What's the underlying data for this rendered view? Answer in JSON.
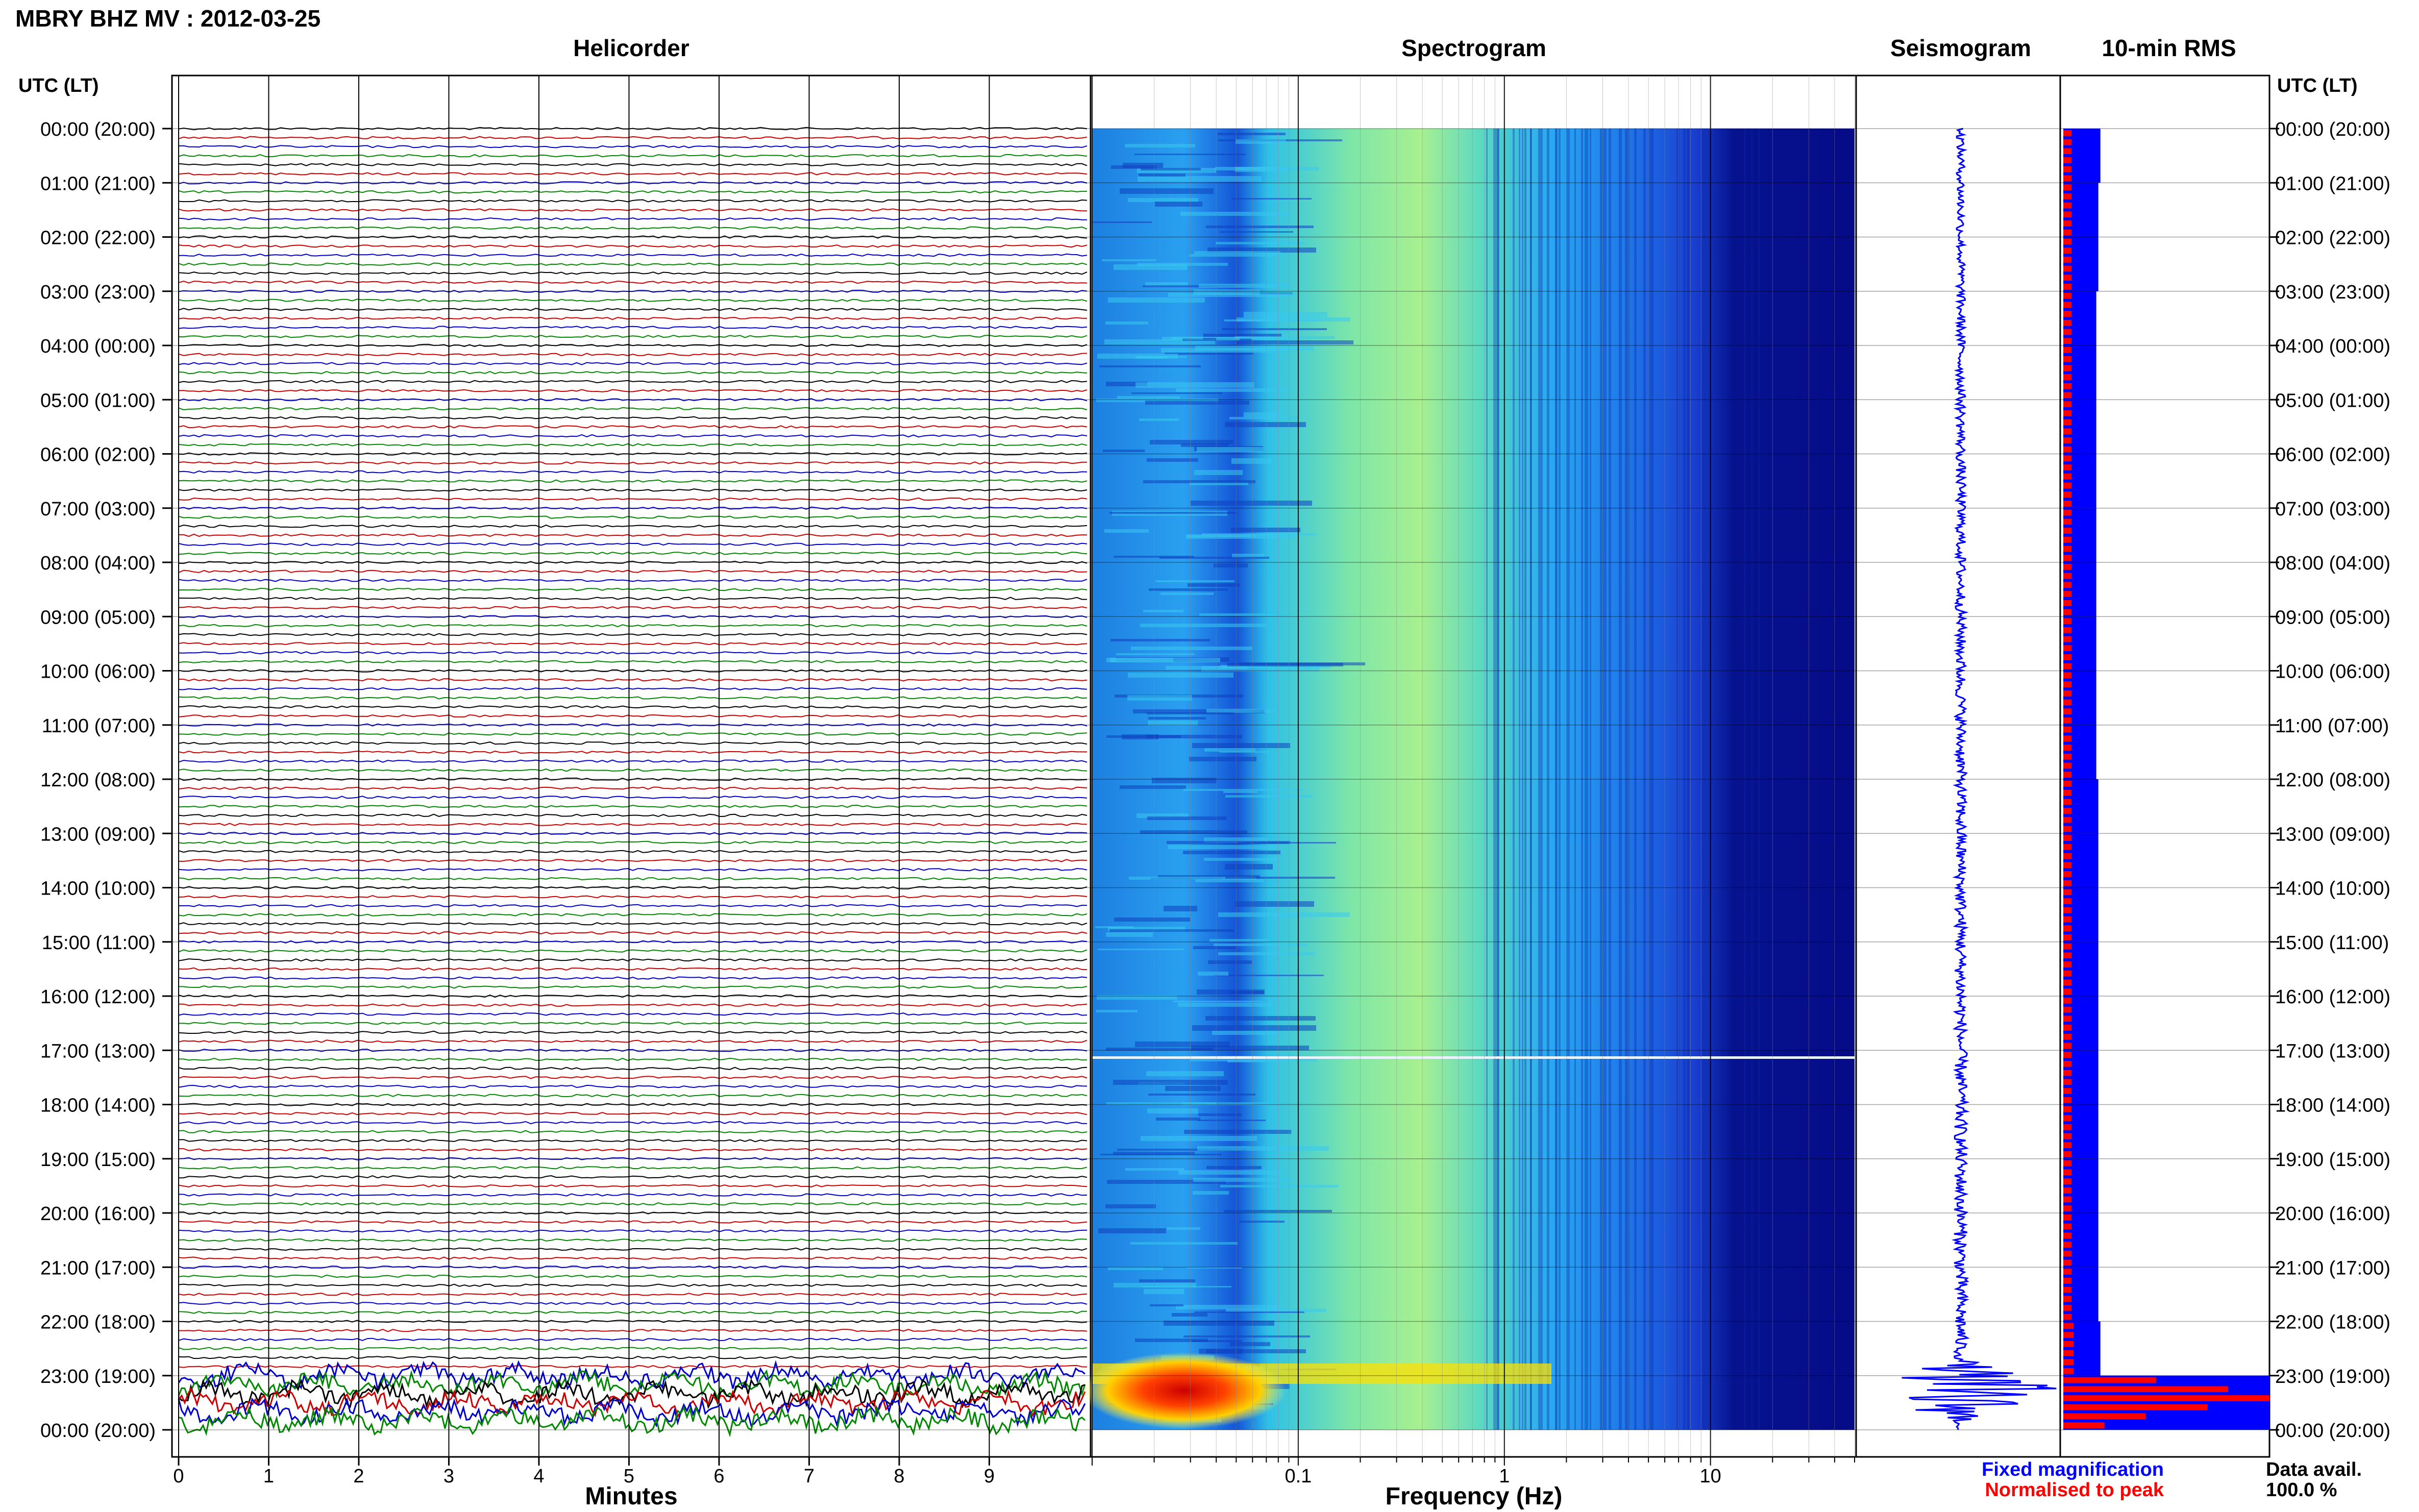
{
  "title": "MBRY BHZ MV : 2012-03-25",
  "panels": {
    "helicorder": "Helicorder",
    "spectrogram": "Spectrogram",
    "seismogram": "Seismogram",
    "rms": "10-min RMS"
  },
  "axis_header_left": "UTC (LT)",
  "axis_header_right": "UTC (LT)",
  "time_labels": [
    "00:00 (20:00)",
    "01:00 (21:00)",
    "02:00 (22:00)",
    "03:00 (23:00)",
    "04:00 (00:00)",
    "05:00 (01:00)",
    "06:00 (02:00)",
    "07:00 (03:00)",
    "08:00 (04:00)",
    "09:00 (05:00)",
    "10:00 (06:00)",
    "11:00 (07:00)",
    "12:00 (08:00)",
    "13:00 (09:00)",
    "14:00 (10:00)",
    "15:00 (11:00)",
    "16:00 (12:00)",
    "17:00 (13:00)",
    "18:00 (14:00)",
    "19:00 (15:00)",
    "20:00 (16:00)",
    "21:00 (17:00)",
    "22:00 (18:00)",
    "23:00 (19:00)",
    "00:00 (20:00)"
  ],
  "legend": {
    "fixed": "Fixed magnification",
    "normalised": "Normalised to peak",
    "fixed_color": "#0000ff",
    "normalised_color": "#ff0000"
  },
  "data_avail": {
    "label": "Data avail.",
    "value": "100.0 %"
  },
  "chart_data": [
    {
      "type": "line",
      "name": "helicorder",
      "title": "Helicorder",
      "xlabel": "Minutes",
      "x_ticks": [
        0,
        1,
        2,
        3,
        4,
        5,
        6,
        7,
        8,
        9
      ],
      "xlim": [
        0,
        10
      ],
      "rows_per_hour": 6,
      "trace_colors": [
        "#000000",
        "#cc0000",
        "#0000cc",
        "#008800"
      ],
      "event_hour": 23
    },
    {
      "type": "heatmap",
      "name": "spectrogram",
      "title": "Spectrogram",
      "xlabel": "Frequency (Hz)",
      "x_scale": "log",
      "x_ticks": [
        0.1,
        1,
        10
      ],
      "x_tick_labels": [
        "0.1",
        "1",
        "10"
      ],
      "xlim": [
        0.01,
        50
      ]
    },
    {
      "type": "line",
      "name": "seismogram",
      "title": "Seismogram",
      "color": "#0000ff"
    },
    {
      "type": "bar",
      "name": "rms",
      "title": "10-min RMS",
      "orientation": "horizontal",
      "series": [
        {
          "name": "Fixed magnification",
          "color": "#0000ff"
        },
        {
          "name": "Normalised to peak",
          "color": "#ff0000"
        }
      ],
      "blue_relative": [
        0.18,
        0.17,
        0.17,
        0.16,
        0.16,
        0.16,
        0.16,
        0.16,
        0.16,
        0.16,
        0.16,
        0.16,
        0.17,
        0.17,
        0.17,
        0.17,
        0.17,
        0.17,
        0.17,
        0.17,
        0.17,
        0.17,
        0.18,
        1.0
      ],
      "red_relative": [
        0.04,
        0.04,
        0.04,
        0.04,
        0.04,
        0.04,
        0.04,
        0.04,
        0.04,
        0.04,
        0.04,
        0.04,
        0.04,
        0.04,
        0.04,
        0.04,
        0.04,
        0.04,
        0.04,
        0.04,
        0.04,
        0.04,
        0.05,
        1.0
      ]
    }
  ]
}
